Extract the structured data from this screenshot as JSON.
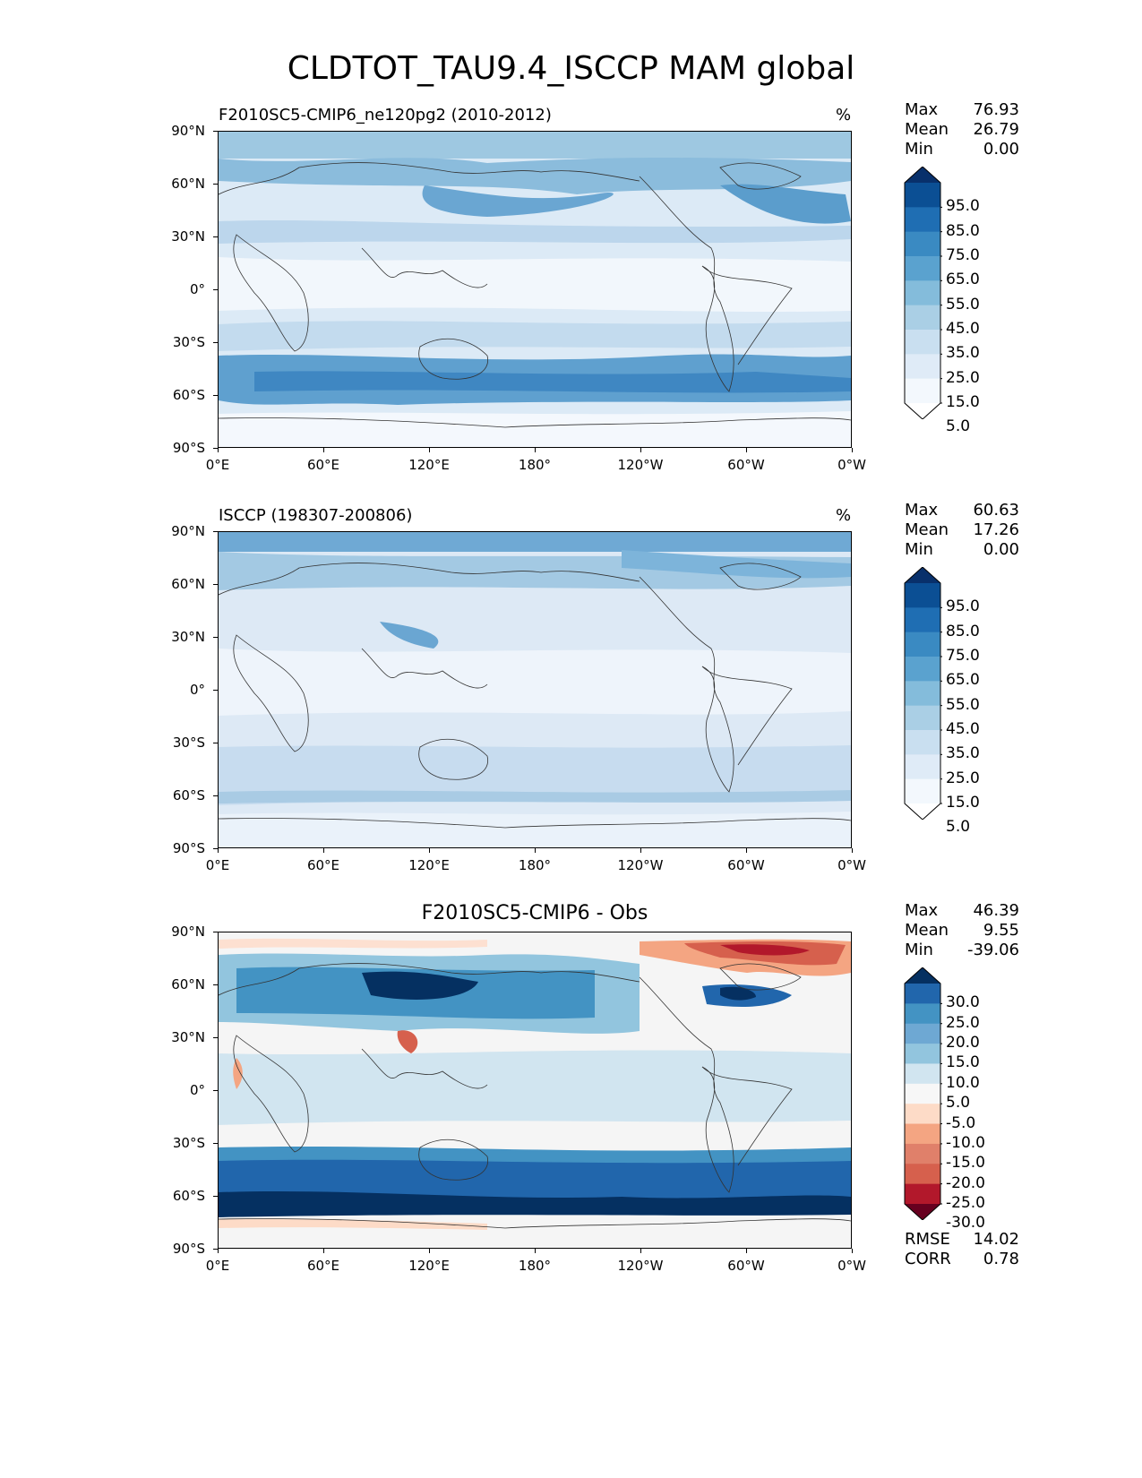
{
  "figure": {
    "title": "CLDTOT_TAU9.4_ISCCP MAM global"
  },
  "axes": {
    "lat_labels": [
      "90°N",
      "60°N",
      "30°N",
      "0°",
      "30°S",
      "60°S",
      "90°S"
    ],
    "lon_labels": [
      "0°E",
      "60°E",
      "120°E",
      "180°",
      "120°W",
      "60°W",
      "0°W"
    ]
  },
  "panels": [
    {
      "title": "F2010SC5-CMIP6_ne120pg2 (2010-2012)",
      "unit": "%",
      "stats": {
        "max_label": "Max",
        "max": "76.93",
        "mean_label": "Mean",
        "mean": "26.79",
        "min_label": "Min",
        "min": "0.00"
      },
      "colorbar": {
        "levels": [
          "95.0",
          "85.0",
          "75.0",
          "65.0",
          "55.0",
          "45.0",
          "35.0",
          "25.0",
          "15.0",
          "5.0"
        ],
        "colors": [
          "#08306b",
          "#0b4f94",
          "#1f6eb3",
          "#3a8ac2",
          "#5aa2cf",
          "#84bcdb",
          "#aacfe5",
          "#c9dff0",
          "#dfebf7",
          "#f3f8fd",
          "#ffffff"
        ]
      }
    },
    {
      "title": "ISCCP (198307-200806)",
      "unit": "%",
      "stats": {
        "max_label": "Max",
        "max": "60.63",
        "mean_label": "Mean",
        "mean": "17.26",
        "min_label": "Min",
        "min": "0.00"
      },
      "colorbar": {
        "levels": [
          "95.0",
          "85.0",
          "75.0",
          "65.0",
          "55.0",
          "45.0",
          "35.0",
          "25.0",
          "15.0",
          "5.0"
        ],
        "colors": [
          "#08306b",
          "#0b4f94",
          "#1f6eb3",
          "#3a8ac2",
          "#5aa2cf",
          "#84bcdb",
          "#aacfe5",
          "#c9dff0",
          "#dfebf7",
          "#f3f8fd",
          "#ffffff"
        ]
      }
    },
    {
      "title": "F2010SC5-CMIP6 - Obs",
      "stats": {
        "max_label": "Max",
        "max": "46.39",
        "mean_label": "Mean",
        "mean": "9.55",
        "min_label": "Min",
        "min": "-39.06"
      },
      "extra_stats": {
        "rmse_label": "RMSE",
        "rmse": "14.02",
        "corr_label": "CORR",
        "corr": "0.78"
      },
      "colorbar": {
        "levels": [
          "30.0",
          "25.0",
          "20.0",
          "15.0",
          "10.0",
          "5.0",
          "-5.0",
          "-10.0",
          "-15.0",
          "-20.0",
          "-25.0",
          "-30.0"
        ],
        "colors": [
          "#053061",
          "#2166ac",
          "#4393c3",
          "#6ea8d3",
          "#92c5de",
          "#d1e5f0",
          "#f7f7f7",
          "#fddbc7",
          "#f4a582",
          "#e0806a",
          "#d6604d",
          "#b2182b",
          "#67001f"
        ]
      }
    }
  ]
}
